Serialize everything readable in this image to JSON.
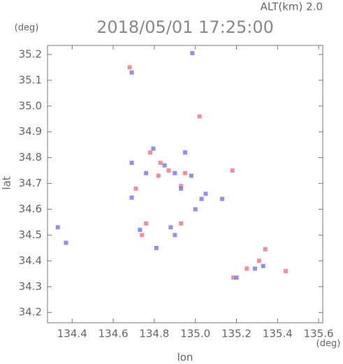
{
  "chart_data": {
    "type": "scatter",
    "title": "2018/05/01 17:25:00",
    "subtitle": "ALT(km) 2.0",
    "y_unit": "(deg)",
    "x_unit": "(deg)",
    "x_label": "lon",
    "y_label": "lat",
    "xlim": [
      134.28,
      135.62
    ],
    "ylim": [
      34.16,
      35.235
    ],
    "xticks": [
      134.4,
      134.6,
      134.8,
      {
        "value": 135,
        "label": "135.0"
      },
      135.2,
      135.4,
      135.6
    ],
    "yticks": [
      34.2,
      34.3,
      34.4,
      34.5,
      34.6,
      34.7,
      34.8,
      34.9,
      {
        "value": 35,
        "label": "35.0"
      },
      35.1,
      35.2
    ],
    "series": [
      {
        "color": "#f07a86",
        "x": [
          134.68,
          135.02,
          134.78,
          134.83,
          134.87,
          134.71,
          134.93,
          134.76,
          134.93,
          135.18,
          135.34,
          135.25,
          135.185,
          135.44,
          134.74,
          134.95,
          135.31,
          134.82
        ],
        "values": [
          35.15,
          34.96,
          34.82,
          34.78,
          34.75,
          34.68,
          34.69,
          34.545,
          34.545,
          34.75,
          34.445,
          34.37,
          34.335,
          34.36,
          34.5,
          34.74,
          34.4,
          34.73
        ]
      },
      {
        "color": "#7a7ef0",
        "x": [
          134.69,
          134.985,
          134.795,
          134.69,
          134.69,
          134.93,
          135.03,
          135.0,
          134.73,
          134.88,
          134.33,
          134.37,
          135.13,
          135.29,
          135.2,
          134.95,
          134.81,
          134.9,
          134.98,
          134.85,
          135.05,
          135.33,
          134.76,
          134.9
        ],
        "values": [
          35.13,
          35.205,
          34.835,
          34.78,
          34.645,
          34.68,
          34.64,
          34.6,
          34.52,
          34.53,
          34.53,
          34.47,
          34.64,
          34.37,
          34.335,
          34.82,
          34.45,
          34.74,
          34.73,
          34.77,
          34.66,
          34.38,
          34.74,
          34.5
        ]
      }
    ]
  }
}
